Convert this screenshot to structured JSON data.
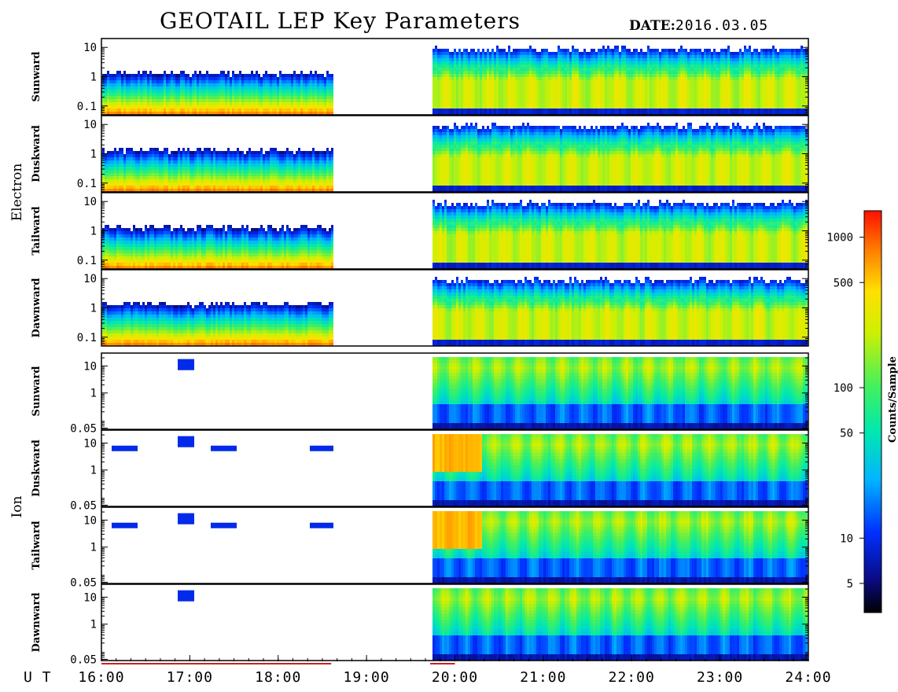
{
  "header": {
    "title": "GEOTAIL LEP Key Parameters",
    "date_label": "DATE:",
    "date_value": "2016.03.05"
  },
  "chart_data": {
    "type": "heatmap",
    "x_axis": {
      "label": "U T",
      "range_hours": [
        16,
        24
      ],
      "ticks": [
        {
          "v": 16,
          "t": "16:00"
        },
        {
          "v": 17,
          "t": "17:00"
        },
        {
          "v": 18,
          "t": "18:00"
        },
        {
          "v": 19,
          "t": "19:00"
        },
        {
          "v": 20,
          "t": "20:00"
        },
        {
          "v": 21,
          "t": "21:00"
        },
        {
          "v": 22,
          "t": "22:00"
        },
        {
          "v": 23,
          "t": "23:00"
        },
        {
          "v": 24,
          "t": "24:00"
        }
      ]
    },
    "data_gap_hours": [
      18.6,
      19.72
    ],
    "groups": [
      {
        "label": "Electron",
        "panels": [
          {
            "label": "Sunward",
            "yrange": [
              0.05,
              20
            ],
            "yticks": [
              {
                "v": 10,
                "t": "10"
              },
              {
                "v": 1,
                "t": "1"
              },
              {
                "v": 0.1,
                "t": "0.1"
              }
            ]
          },
          {
            "label": "Duskward",
            "yrange": [
              0.05,
              20
            ],
            "yticks": [
              {
                "v": 10,
                "t": "10"
              },
              {
                "v": 1,
                "t": "1"
              },
              {
                "v": 0.1,
                "t": "0.1"
              }
            ]
          },
          {
            "label": "Tailward",
            "yrange": [
              0.05,
              20
            ],
            "yticks": [
              {
                "v": 10,
                "t": "10"
              },
              {
                "v": 1,
                "t": "1"
              },
              {
                "v": 0.1,
                "t": "0.1"
              }
            ]
          },
          {
            "label": "Dawnward",
            "yrange": [
              0.05,
              20
            ],
            "yticks": [
              {
                "v": 10,
                "t": "10"
              },
              {
                "v": 1,
                "t": "1"
              },
              {
                "v": 0.1,
                "t": "0.1"
              }
            ]
          }
        ]
      },
      {
        "label": "Ion",
        "panels": [
          {
            "label": "Sunward",
            "yrange": [
              0.045,
              30
            ],
            "yticks": [
              {
                "v": 10,
                "t": "10"
              },
              {
                "v": 1,
                "t": "1"
              },
              {
                "v": 0.05,
                "t": "0.05"
              }
            ]
          },
          {
            "label": "Duskward",
            "yrange": [
              0.045,
              30
            ],
            "yticks": [
              {
                "v": 10,
                "t": "10"
              },
              {
                "v": 1,
                "t": "1"
              },
              {
                "v": 0.05,
                "t": "0.05"
              }
            ]
          },
          {
            "label": "Tailward",
            "yrange": [
              0.045,
              30
            ],
            "yticks": [
              {
                "v": 10,
                "t": "10"
              },
              {
                "v": 1,
                "t": "1"
              },
              {
                "v": 0.05,
                "t": "0.05"
              }
            ]
          },
          {
            "label": "Dawnward",
            "yrange": [
              0.045,
              30
            ],
            "yticks": [
              {
                "v": 10,
                "t": "10"
              },
              {
                "v": 1,
                "t": "1"
              },
              {
                "v": 0.05,
                "t": "0.05"
              }
            ]
          }
        ]
      }
    ],
    "colorbar": {
      "label": "Counts/Sample",
      "scale": "log",
      "range": [
        3.2,
        1500
      ],
      "ticks": [
        {
          "v": 1000,
          "t": "1000"
        },
        {
          "v": 500,
          "t": "500"
        },
        {
          "v": 100,
          "t": "100"
        },
        {
          "v": 50,
          "t": "50"
        },
        {
          "v": 10,
          "t": "10"
        },
        {
          "v": 5,
          "t": "5"
        }
      ]
    }
  }
}
